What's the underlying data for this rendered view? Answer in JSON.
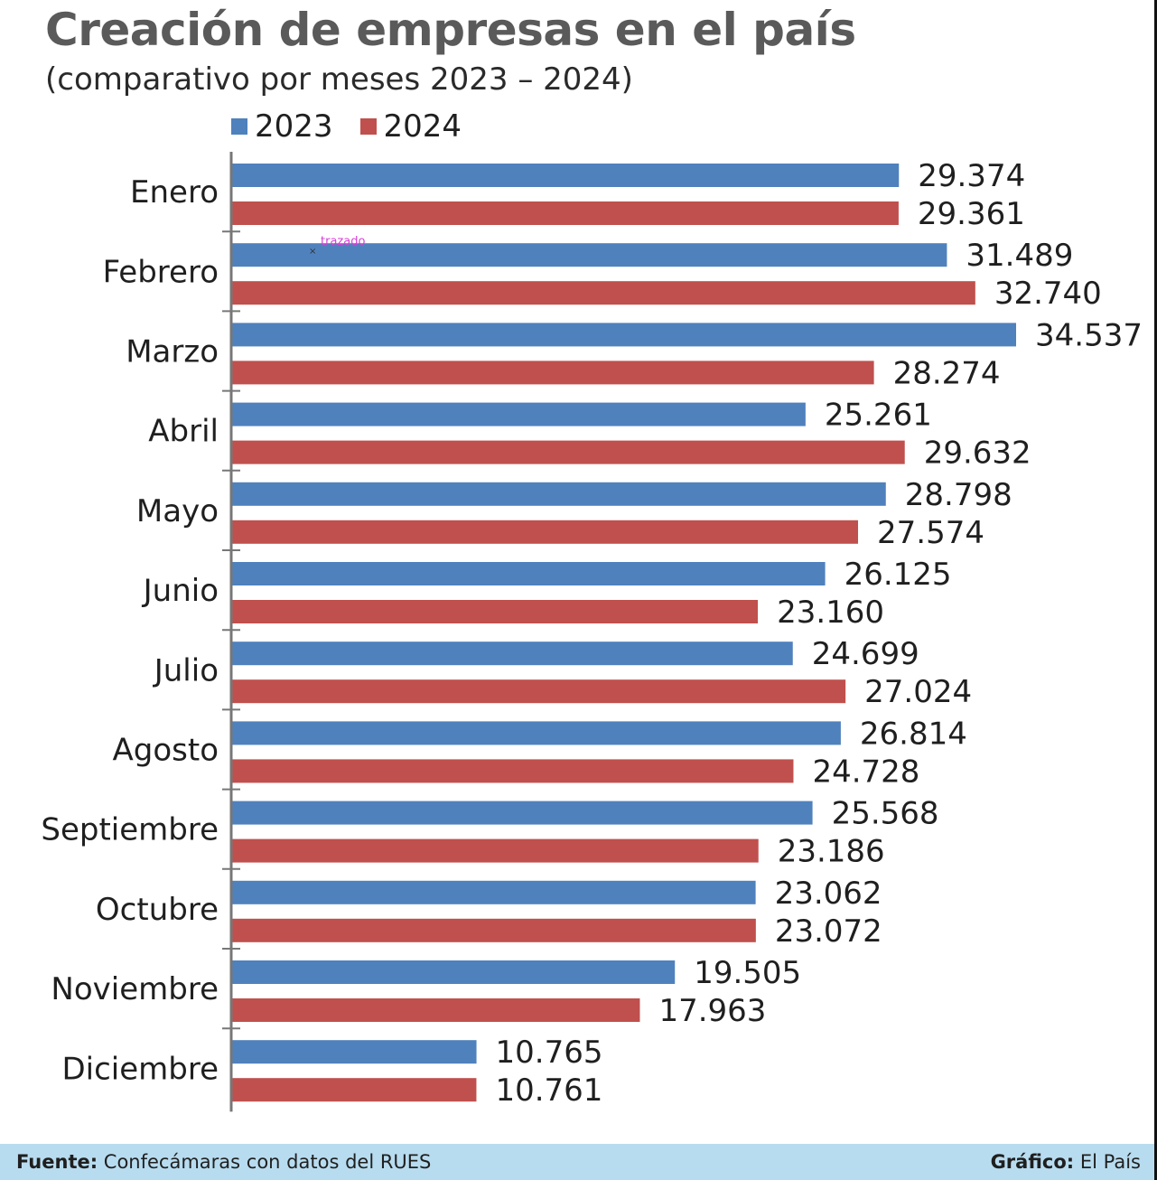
{
  "header": {
    "title": "Creación de empresas en el país",
    "subtitle": "(comparativo por meses 2023 – 2024)"
  },
  "chart_data": {
    "type": "bar",
    "orientation": "horizontal",
    "categories": [
      "Enero",
      "Febrero",
      "Marzo",
      "Abril",
      "Mayo",
      "Junio",
      "Julio",
      "Agosto",
      "Septiembre",
      "Octubre",
      "Noviembre",
      "Diciembre"
    ],
    "series": [
      {
        "name": "2023",
        "color": "#4f81bd",
        "values": [
          29374,
          31489,
          34537,
          25261,
          28798,
          26125,
          24699,
          26814,
          25568,
          23062,
          19505,
          10765
        ],
        "labels": [
          "29.374",
          "31.489",
          "34.537",
          "25.261",
          "28.798",
          "26.125",
          "24.699",
          "26.814",
          "25.568",
          "23.062",
          "19.505",
          "10.765"
        ]
      },
      {
        "name": "2024",
        "color": "#c0504d",
        "values": [
          29361,
          32740,
          28274,
          29632,
          27574,
          23160,
          27024,
          24728,
          23186,
          23072,
          17963,
          10761
        ],
        "labels": [
          "29.361",
          "32.740",
          "28.274",
          "29.632",
          "27.574",
          "23.160",
          "27.024",
          "24.728",
          "23.186",
          "23.072",
          "17.963",
          "10.761"
        ]
      }
    ],
    "xlim": [
      0,
      34537
    ],
    "legend_position": "top-left",
    "grid": false,
    "annotation": "trazado"
  },
  "footer": {
    "source_label": "Fuente:",
    "source_text": " Confecámaras con datos del RUES",
    "credit_label": "Gráfico:",
    "credit_text": " El País"
  }
}
